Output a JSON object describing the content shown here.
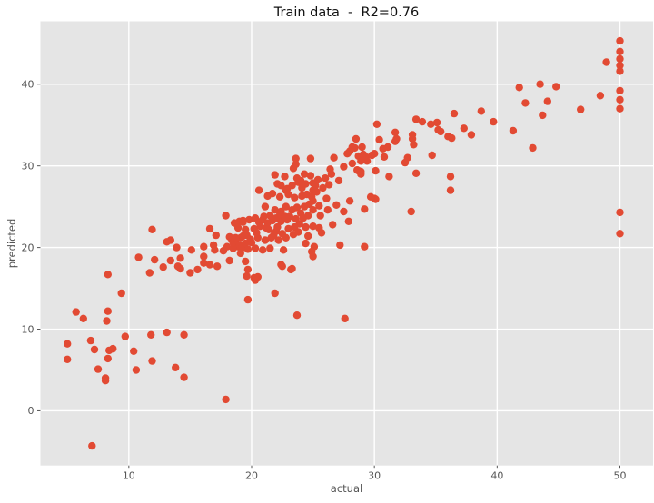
{
  "figure": {
    "background": "#ffffff"
  },
  "chart_data": {
    "type": "scatter",
    "title": "Train data  -  R2=0.76",
    "xlabel": "actual",
    "ylabel": "predicted",
    "xlim": [
      2.8,
      52.7
    ],
    "ylim": [
      -6.7,
      47.7
    ],
    "x_ticks": [
      10,
      20,
      30,
      40,
      50
    ],
    "y_ticks": [
      0,
      10,
      20,
      30,
      40
    ],
    "grid": true,
    "legend": "none",
    "style": {
      "panel_bg": "#e5e5e5",
      "grid_color": "#ffffff",
      "point_color": "#e24a33",
      "tick_color": "#555555",
      "tick_label_color": "#555555",
      "title_color": "#111111",
      "point_radius": 4.2
    },
    "series": [
      {
        "name": "train",
        "points": [
          [
            7.0,
            -4.3
          ],
          [
            8.1,
            3.7
          ],
          [
            17.9,
            1.4
          ],
          [
            14.5,
            4.1
          ],
          [
            8.1,
            4.0
          ],
          [
            13.8,
            5.3
          ],
          [
            10.6,
            5.0
          ],
          [
            7.5,
            5.1
          ],
          [
            11.9,
            6.1
          ],
          [
            8.3,
            6.4
          ],
          [
            5.0,
            6.3
          ],
          [
            7.2,
            7.5
          ],
          [
            8.4,
            7.4
          ],
          [
            8.7,
            7.6
          ],
          [
            6.9,
            8.6
          ],
          [
            5.0,
            8.2
          ],
          [
            10.4,
            7.3
          ],
          [
            9.7,
            9.1
          ],
          [
            11.8,
            9.3
          ],
          [
            13.1,
            9.6
          ],
          [
            14.5,
            9.3
          ],
          [
            6.3,
            11.3
          ],
          [
            5.7,
            12.1
          ],
          [
            8.2,
            11.0
          ],
          [
            8.3,
            12.2
          ],
          [
            9.4,
            14.4
          ],
          [
            8.3,
            16.7
          ],
          [
            23.7,
            11.7
          ],
          [
            27.6,
            11.3
          ],
          [
            19.7,
            13.6
          ],
          [
            21.9,
            14.4
          ],
          [
            19.6,
            16.5
          ],
          [
            20.2,
            16.3
          ],
          [
            20.5,
            16.4
          ],
          [
            20.3,
            16.0
          ],
          [
            22.5,
            17.7
          ],
          [
            23.2,
            17.3
          ],
          [
            10.8,
            18.8
          ],
          [
            12.1,
            18.5
          ],
          [
            13.4,
            18.4
          ],
          [
            14.2,
            18.7
          ],
          [
            16.1,
            18.9
          ],
          [
            11.7,
            16.9
          ],
          [
            12.8,
            17.6
          ],
          [
            14.0,
            17.7
          ],
          [
            14.2,
            17.4
          ],
          [
            15.0,
            16.9
          ],
          [
            15.6,
            17.3
          ],
          [
            16.1,
            18.1
          ],
          [
            16.6,
            17.9
          ],
          [
            17.2,
            17.7
          ],
          [
            13.1,
            20.7
          ],
          [
            13.4,
            20.9
          ],
          [
            13.9,
            20.0
          ],
          [
            15.1,
            19.7
          ],
          [
            16.1,
            20.1
          ],
          [
            16.9,
            20.3
          ],
          [
            17.0,
            19.7
          ],
          [
            17.7,
            19.6
          ],
          [
            18.4,
            20.9
          ],
          [
            18.7,
            20.7
          ],
          [
            18.9,
            20.1
          ],
          [
            19.1,
            21.2
          ],
          [
            19.3,
            20.0
          ],
          [
            19.3,
            21.4
          ],
          [
            11.9,
            22.2
          ],
          [
            17.9,
            23.9
          ],
          [
            19.0,
            23.2
          ],
          [
            19.3,
            23.3
          ],
          [
            16.6,
            22.3
          ],
          [
            17.1,
            21.5
          ],
          [
            18.0,
            20.1
          ],
          [
            18.2,
            21.3
          ],
          [
            18.2,
            18.4
          ],
          [
            18.5,
            19.9
          ],
          [
            18.5,
            20.6
          ],
          [
            18.6,
            23.0
          ],
          [
            18.7,
            21.2
          ],
          [
            18.9,
            22.4
          ],
          [
            19.0,
            20.3
          ],
          [
            19.2,
            20.0
          ],
          [
            19.3,
            23.1
          ],
          [
            19.5,
            18.3
          ],
          [
            19.5,
            20.5
          ],
          [
            19.5,
            22.2
          ],
          [
            19.6,
            21.5
          ],
          [
            19.7,
            17.3
          ],
          [
            19.7,
            19.8
          ],
          [
            19.8,
            23.4
          ],
          [
            20.2,
            22.3
          ],
          [
            20.3,
            19.9
          ],
          [
            20.3,
            23.6
          ],
          [
            20.5,
            21.2
          ],
          [
            20.6,
            23.1
          ],
          [
            20.9,
            19.7
          ],
          [
            20.9,
            23.4
          ],
          [
            21.1,
            20.9
          ],
          [
            21.1,
            25.0
          ],
          [
            21.3,
            23.0
          ],
          [
            21.4,
            22.2
          ],
          [
            21.5,
            19.9
          ],
          [
            21.6,
            21.2
          ],
          [
            21.7,
            23.3
          ],
          [
            21.9,
            24.6
          ],
          [
            22.0,
            22.0
          ],
          [
            22.2,
            20.9
          ],
          [
            22.4,
            23.2
          ],
          [
            22.4,
            24.4
          ],
          [
            22.4,
            17.9
          ],
          [
            22.6,
            19.7
          ],
          [
            22.8,
            21.2
          ],
          [
            22.8,
            25.0
          ],
          [
            22.9,
            23.4
          ],
          [
            23.3,
            24.6
          ],
          [
            23.3,
            17.4
          ],
          [
            23.4,
            21.6
          ],
          [
            23.7,
            24.9
          ],
          [
            23.9,
            22.9
          ],
          [
            24.3,
            25.0
          ],
          [
            24.4,
            20.5
          ],
          [
            24.4,
            22.5
          ],
          [
            24.6,
            21.4
          ],
          [
            25.0,
            24.6
          ],
          [
            25.0,
            22.6
          ],
          [
            25.0,
            18.9
          ],
          [
            25.1,
            20.1
          ],
          [
            20.6,
            27.0
          ],
          [
            21.9,
            28.9
          ],
          [
            22.1,
            27.8
          ],
          [
            22.4,
            27.6
          ],
          [
            22.7,
            28.7
          ],
          [
            22.8,
            27.0
          ],
          [
            22.9,
            27.2
          ],
          [
            23.4,
            29.7
          ],
          [
            23.6,
            30.9
          ],
          [
            23.7,
            28.5
          ],
          [
            23.8,
            28.0
          ],
          [
            24.0,
            28.2
          ],
          [
            24.1,
            27.3
          ],
          [
            24.1,
            26.3
          ],
          [
            24.3,
            29.0
          ],
          [
            24.4,
            27.8
          ],
          [
            24.8,
            30.9
          ],
          [
            24.8,
            28.8
          ],
          [
            25.0,
            27.9
          ],
          [
            25.0,
            27.0
          ],
          [
            25.0,
            25.7
          ],
          [
            25.2,
            27.6
          ],
          [
            23.6,
            30.2
          ],
          [
            26.5,
            29.0
          ],
          [
            26.6,
            22.8
          ],
          [
            26.7,
            31.0
          ],
          [
            27.1,
            28.2
          ],
          [
            27.2,
            20.3
          ],
          [
            27.5,
            24.4
          ],
          [
            27.5,
            29.9
          ],
          [
            27.8,
            31.5
          ],
          [
            27.9,
            23.2
          ],
          [
            28.0,
            25.7
          ],
          [
            28.0,
            31.8
          ],
          [
            28.2,
            30.3
          ],
          [
            28.2,
            32.3
          ],
          [
            28.4,
            32.2
          ],
          [
            28.5,
            33.3
          ],
          [
            28.6,
            29.5
          ],
          [
            28.7,
            29.4
          ],
          [
            28.7,
            31.2
          ],
          [
            28.9,
            29.3
          ],
          [
            28.9,
            29.0
          ],
          [
            28.9,
            30.6
          ],
          [
            29.0,
            32.3
          ],
          [
            29.1,
            31.4
          ],
          [
            29.2,
            20.1
          ],
          [
            29.2,
            24.7
          ],
          [
            29.3,
            31.1
          ],
          [
            29.4,
            30.6
          ],
          [
            29.7,
            26.2
          ],
          [
            29.8,
            31.3
          ],
          [
            30.0,
            26.0
          ],
          [
            30.1,
            25.9
          ],
          [
            30.0,
            31.5
          ],
          [
            30.1,
            29.4
          ],
          [
            26.4,
            29.6
          ],
          [
            30.2,
            35.1
          ],
          [
            30.4,
            33.2
          ],
          [
            30.7,
            32.1
          ],
          [
            30.8,
            31.1
          ],
          [
            31.1,
            32.3
          ],
          [
            31.2,
            28.7
          ],
          [
            31.7,
            34.1
          ],
          [
            31.8,
            33.3
          ],
          [
            31.7,
            33.0
          ],
          [
            32.5,
            30.4
          ],
          [
            32.7,
            31.0
          ],
          [
            33.0,
            24.4
          ],
          [
            33.1,
            33.8
          ],
          [
            33.1,
            33.3
          ],
          [
            33.2,
            32.6
          ],
          [
            33.4,
            35.7
          ],
          [
            33.4,
            29.1
          ],
          [
            33.9,
            35.4
          ],
          [
            34.6,
            35.1
          ],
          [
            34.7,
            31.3
          ],
          [
            35.1,
            35.3
          ],
          [
            35.2,
            34.4
          ],
          [
            35.4,
            34.2
          ],
          [
            36.0,
            33.6
          ],
          [
            36.2,
            28.7
          ],
          [
            36.2,
            27.0
          ],
          [
            36.3,
            33.4
          ],
          [
            36.5,
            36.4
          ],
          [
            37.3,
            34.6
          ],
          [
            37.9,
            33.8
          ],
          [
            38.7,
            36.7
          ],
          [
            39.7,
            35.4
          ],
          [
            41.3,
            34.3
          ],
          [
            41.8,
            39.6
          ],
          [
            42.3,
            37.7
          ],
          [
            42.9,
            32.2
          ],
          [
            43.5,
            40.0
          ],
          [
            43.7,
            36.2
          ],
          [
            44.1,
            37.9
          ],
          [
            44.8,
            39.7
          ],
          [
            46.8,
            36.9
          ],
          [
            48.4,
            38.6
          ],
          [
            48.9,
            42.7
          ],
          [
            50.0,
            45.3
          ],
          [
            50.0,
            44.0
          ],
          [
            50.0,
            43.1
          ],
          [
            50.0,
            42.3
          ],
          [
            50.0,
            41.6
          ],
          [
            50.0,
            39.2
          ],
          [
            50.0,
            38.1
          ],
          [
            50.0,
            37.0
          ],
          [
            50.0,
            24.3
          ],
          [
            50.0,
            21.7
          ],
          [
            19.1,
            19.3
          ],
          [
            19.9,
            21.0
          ],
          [
            20.0,
            20.6
          ],
          [
            20.4,
            21.8
          ],
          [
            20.7,
            22.6
          ],
          [
            21.0,
            23.8
          ],
          [
            21.2,
            22.4
          ],
          [
            21.5,
            23.9
          ],
          [
            21.8,
            21.5
          ],
          [
            22.0,
            23.6
          ],
          [
            22.1,
            22.5
          ],
          [
            22.3,
            24.0
          ],
          [
            22.5,
            21.7
          ],
          [
            22.7,
            23.8
          ],
          [
            23.0,
            22.3
          ],
          [
            23.1,
            23.8
          ],
          [
            23.5,
            22.5
          ],
          [
            23.6,
            23.5
          ],
          [
            23.8,
            21.9
          ],
          [
            24.0,
            24.2
          ],
          [
            24.2,
            23.6
          ],
          [
            24.6,
            23.9
          ],
          [
            24.7,
            25.3
          ],
          [
            21.3,
            26.3
          ],
          [
            21.7,
            26.6
          ],
          [
            22.3,
            26.2
          ],
          [
            23.0,
            26.5
          ],
          [
            23.3,
            27.6
          ],
          [
            23.5,
            26.1
          ],
          [
            24.5,
            26.5
          ],
          [
            24.9,
            26.2
          ],
          [
            25.3,
            26.8
          ],
          [
            25.4,
            28.3
          ],
          [
            25.5,
            25.1
          ],
          [
            25.6,
            23.9
          ],
          [
            25.8,
            27.3
          ],
          [
            26.0,
            28.5
          ],
          [
            26.1,
            26.0
          ],
          [
            26.2,
            24.6
          ],
          [
            26.3,
            27.7
          ],
          [
            25.7,
            21.8
          ],
          [
            26.9,
            25.2
          ],
          [
            24.9,
            19.5
          ],
          [
            25.5,
            22.4
          ]
        ]
      }
    ]
  }
}
